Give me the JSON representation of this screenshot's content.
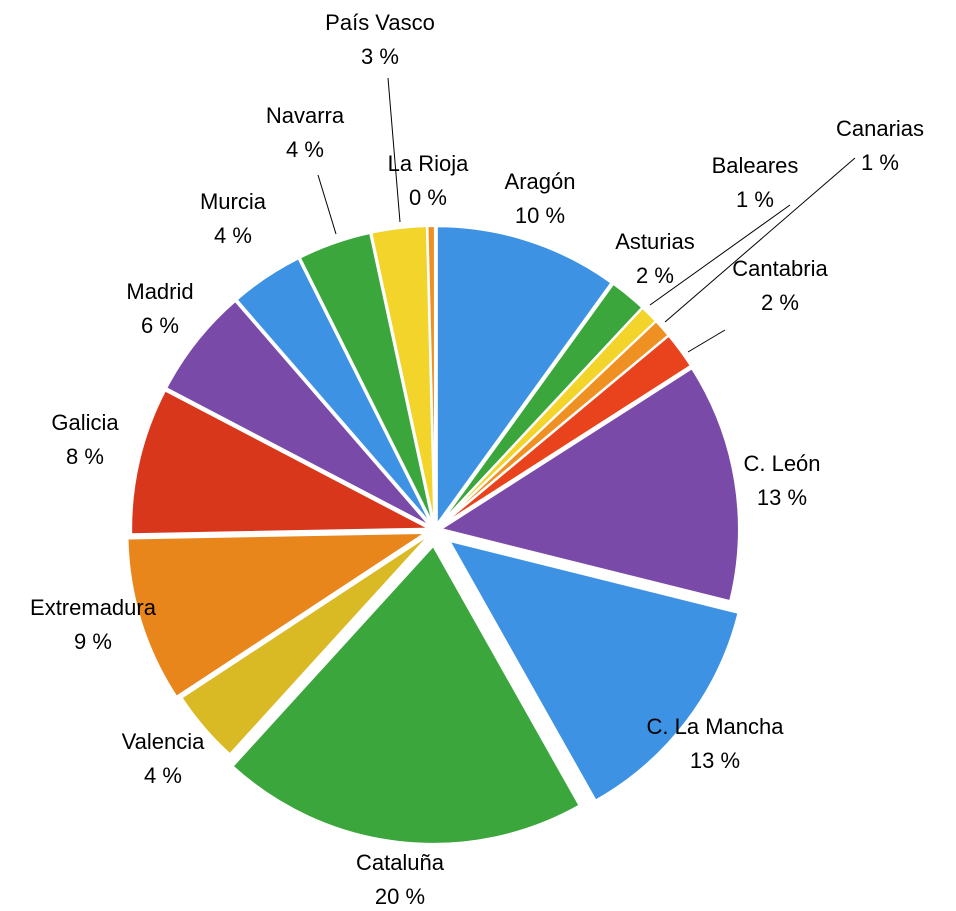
{
  "chart_data": {
    "type": "pie",
    "categories": [
      "Aragón",
      "Asturias",
      "Baleares",
      "Canarias",
      "Cantabria",
      "C. León",
      "C. La Mancha",
      "Cataluña",
      "Valencia",
      "Extremadura",
      "Galicia",
      "Madrid",
      "Murcia",
      "Navarra",
      "País Vasco",
      "La Rioja"
    ],
    "values": [
      10,
      2,
      1,
      1,
      2,
      13,
      13,
      20,
      4,
      9,
      8,
      6,
      4,
      4,
      3,
      0.4
    ],
    "value_labels": [
      "10 %",
      "2 %",
      "1 %",
      "1 %",
      "2 %",
      "13 %",
      "13 %",
      "20 %",
      "4 %",
      "9 %",
      "8 %",
      "6 %",
      "4 %",
      "4 %",
      "3 %",
      "0 %"
    ],
    "colors": [
      "#3d92e3",
      "#3aa63c",
      "#f2d42a",
      "#ef9022",
      "#e8431c",
      "#7a4aa9",
      "#3d92e3",
      "#3aa63c",
      "#d9b924",
      "#e8861c",
      "#d8371b",
      "#7a4aa9",
      "#3d92e3",
      "#3aa63c",
      "#f2d42a",
      "#ef9022"
    ]
  }
}
